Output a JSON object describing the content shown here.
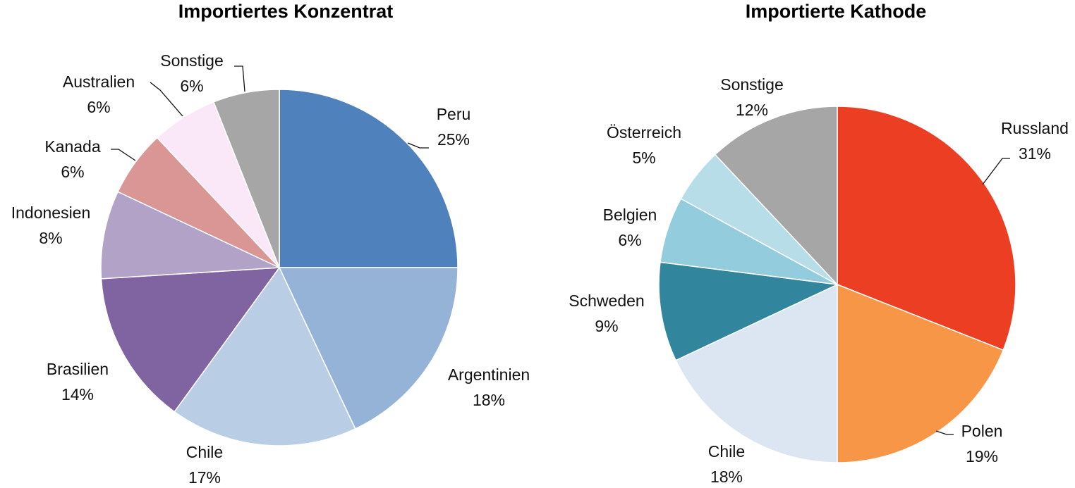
{
  "chart_data": [
    {
      "type": "pie",
      "title": "Importiertes Konzentrat",
      "slices": [
        {
          "label": "Peru",
          "value": 25,
          "value_label": "25%",
          "color": "#4f81bd"
        },
        {
          "label": "Argentinien",
          "value": 18,
          "value_label": "18%",
          "color": "#95b3d7"
        },
        {
          "label": "Chile",
          "value": 17,
          "value_label": "17%",
          "color": "#b9cde5"
        },
        {
          "label": "Brasilien",
          "value": 14,
          "value_label": "14%",
          "color": "#8064a2"
        },
        {
          "label": "Indonesien",
          "value": 8,
          "value_label": "8%",
          "color": "#b2a2c7"
        },
        {
          "label": "Kanada",
          "value": 6,
          "value_label": "6%",
          "color": "#d99694"
        },
        {
          "label": "Australien",
          "value": 6,
          "value_label": "6%",
          "color": "#fae8f9"
        },
        {
          "label": "Sonstige",
          "value": 6,
          "value_label": "6%",
          "color": "#a6a6a6"
        }
      ]
    },
    {
      "type": "pie",
      "title": "Importierte Kathode",
      "slices": [
        {
          "label": "Russland",
          "value": 31,
          "value_label": "31%",
          "color": "#ec3e22"
        },
        {
          "label": "Polen",
          "value": 19,
          "value_label": "19%",
          "color": "#f79646"
        },
        {
          "label": "Chile",
          "value": 18,
          "value_label": "18%",
          "color": "#dce6f2"
        },
        {
          "label": "Schweden",
          "value": 9,
          "value_label": "9%",
          "color": "#31859c"
        },
        {
          "label": "Belgien",
          "value": 6,
          "value_label": "6%",
          "color": "#93cddd"
        },
        {
          "label": "Österreich",
          "value": 5,
          "value_label": "5%",
          "color": "#b7dee8"
        },
        {
          "label": "Sonstige",
          "value": 12,
          "value_label": "12%",
          "color": "#a6a6a6"
        }
      ]
    }
  ]
}
